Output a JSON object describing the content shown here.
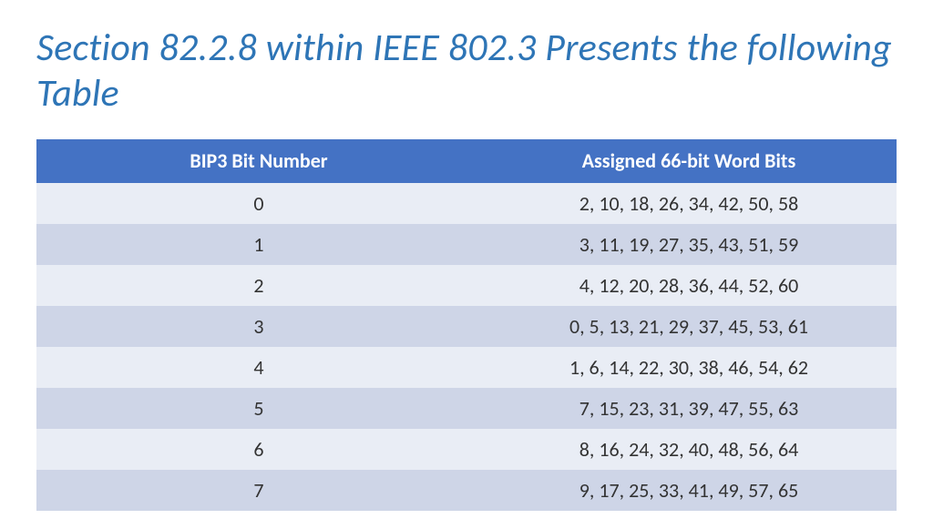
{
  "title": {
    "text": "Section 82.2.8 within IEEE 802.3 Presents the following Table",
    "color": "#2e75b6",
    "fontsize": 42
  },
  "table": {
    "type": "table",
    "columns": [
      "BIP3 Bit Number",
      "Assigned 66-bit Word Bits"
    ],
    "rows": [
      [
        "0",
        "2, 10, 18, 26, 34, 42, 50, 58"
      ],
      [
        "1",
        "3, 11, 19, 27, 35, 43, 51, 59"
      ],
      [
        "2",
        "4, 12, 20, 28, 36, 44, 52, 60"
      ],
      [
        "3",
        "0, 5, 13, 21, 29, 37, 45, 53, 61"
      ],
      [
        "4",
        "1, 6, 14, 22, 30, 38, 46, 54, 62"
      ],
      [
        "5",
        "7, 15, 23, 31, 39, 47, 55, 63"
      ],
      [
        "6",
        "8, 16, 24, 32, 40, 48, 56, 64"
      ],
      [
        "7",
        "9, 17, 25, 33, 41, 49, 57, 65"
      ]
    ],
    "header_bg": "#4472c4",
    "header_fg": "#ffffff",
    "row_bg_even": "#e9edf5",
    "row_bg_odd": "#ced5e7",
    "cell_fg": "#333333",
    "header_fontsize": 22,
    "cell_fontsize": 22
  }
}
